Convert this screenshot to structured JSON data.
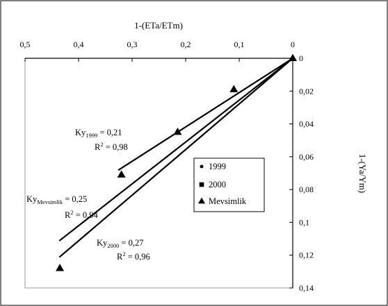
{
  "chart_data": {
    "type": "scatter",
    "xlabel": "1-(ETa/ETm)",
    "ylabel": "1-(Ya/Ym)",
    "x_axis_position": "top",
    "x_axis_reversed": true,
    "y_axis_position": "right",
    "y_axis_reversed": true,
    "xlim": [
      0,
      0.5
    ],
    "ylim": [
      0,
      0.14
    ],
    "x_ticks": [
      "0,5",
      "0,4",
      "0,3",
      "0,2",
      "0,1",
      "0"
    ],
    "y_ticks": [
      "0",
      "0,02",
      "0,04",
      "0,06",
      "0,08",
      "0,1",
      "0,12",
      "0,14"
    ],
    "grid": false,
    "legend_position": "center-right",
    "series": [
      {
        "name": "1999",
        "marker": "circle",
        "points": []
      },
      {
        "name": "2000",
        "marker": "square",
        "points": []
      },
      {
        "name": "Mevsimlik",
        "marker": "triangle",
        "points": [
          [
            0,
            0
          ],
          [
            0.11,
            0.019
          ],
          [
            0.215,
            0.045
          ],
          [
            0.32,
            0.071
          ],
          [
            0.435,
            0.128
          ]
        ]
      }
    ],
    "regression_lines": [
      {
        "label": "1999",
        "x_end": 0.325,
        "y_end": 0.068
      },
      {
        "label": "Mevsimlik",
        "x_end": 0.435,
        "y_end": 0.111
      },
      {
        "label": "2000",
        "x_end": 0.435,
        "y_end": 0.121
      }
    ],
    "annotations": [
      {
        "id": "ky1999",
        "base": "Ky",
        "sub": "1999",
        "value": " = 0,21",
        "r2_value": " = 0,98"
      },
      {
        "id": "kymevsimlik",
        "base": "Ky",
        "sub": "Mevsimlik",
        "value": " = 0,25",
        "r2_value": " = 0,94"
      },
      {
        "id": "ky2000",
        "base": "Ky",
        "sub": "2000",
        "value": " = 0,27",
        "r2_value": " = 0,96"
      }
    ],
    "r2_base": "R",
    "r2_sup": "2"
  },
  "colors": {
    "marker": "#000000",
    "line": "#000000",
    "frame": "#000000",
    "plot_border": "#999999"
  }
}
